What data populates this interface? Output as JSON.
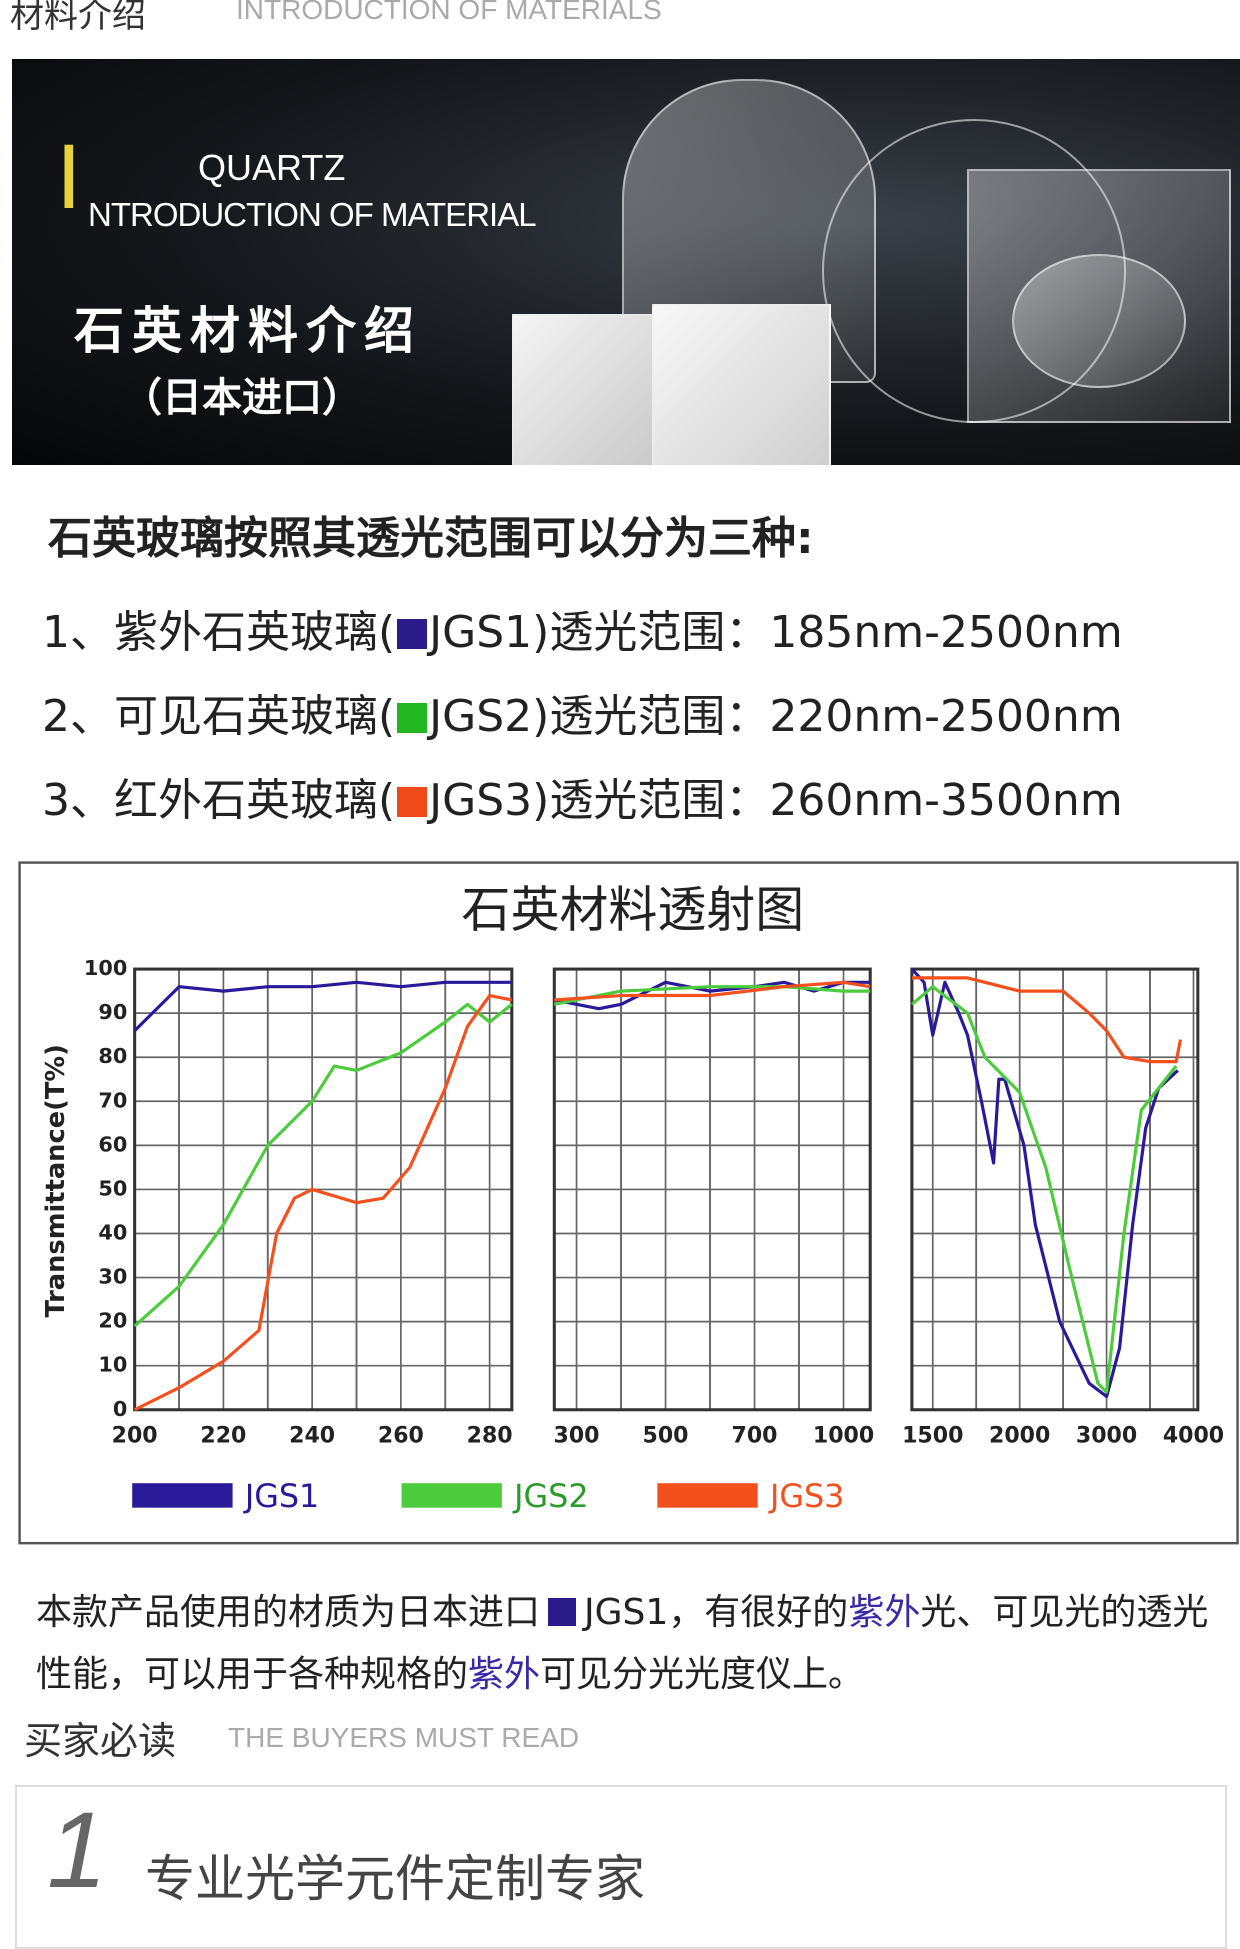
{
  "header": {
    "title": "材料介绍",
    "subtitle": "INTRODUCTION OF MATERIALS"
  },
  "banner": {
    "initial": "I",
    "line1": "QUARTZ",
    "line2": "NTRODUCTION OF MATERIAL",
    "cn_title": "石英材料介绍",
    "cn_sub": "（日本进口）"
  },
  "intro": {
    "heading": "石英玻璃按照其透光范围可以分为三种:",
    "items": [
      {
        "prefix": "1、紫外石英玻璃(",
        "color": "#2a1a8a",
        "name": "JGS1",
        "suffix": ")透光范围：",
        "range": "185nm-2500nm"
      },
      {
        "prefix": "2、可见石英玻璃(",
        "color": "#22b822",
        "name": "JGS2",
        "suffix": ")透光范围：",
        "range": "220nm-2500nm"
      },
      {
        "prefix": "3、红外石英玻璃(",
        "color": "#f04a1a",
        "name": "JGS3",
        "suffix": ")透光范围：",
        "range": "260nm-3500nm"
      }
    ]
  },
  "chart_data": {
    "type": "line",
    "title": "石英材料透射图",
    "y_label": "Transmittance(T%)",
    "ylim": [
      0,
      100
    ],
    "yticks": [
      0,
      10,
      20,
      30,
      40,
      50,
      60,
      70,
      80,
      90,
      100
    ],
    "grid": true,
    "panels": [
      {
        "xlim": [
          200,
          285
        ],
        "xticks": [
          200,
          220,
          240,
          260,
          280
        ]
      },
      {
        "xlim": [
          250,
          1090
        ],
        "xticks": [
          300,
          500,
          700,
          1000
        ]
      },
      {
        "xlim": [
          1380,
          4050
        ],
        "xticks": [
          1500,
          2000,
          3000,
          4000
        ]
      }
    ],
    "series": [
      {
        "name": "JGS1",
        "color": "#2a1a9a",
        "pieces": [
          {
            "x": [
              200,
              205,
              210,
              220,
              230,
              240,
              250,
              260,
              270,
              280,
              285
            ],
            "values": [
              86,
              91,
              96,
              95,
              96,
              96,
              97,
              96,
              97,
              97,
              97
            ]
          },
          {
            "x": [
              250,
              350,
              400,
              500,
              550,
              600,
              700,
              800,
              900,
              1000,
              1090
            ],
            "values": [
              93,
              91,
              92,
              97,
              96,
              95,
              96,
              97,
              95,
              97,
              97
            ]
          },
          {
            "x": [
              1380,
              1450,
              1500,
              1570,
              1650,
              1700,
              1780,
              1850,
              1880,
              1914,
              2050,
              2180,
              2460,
              2800,
              3000,
              3150,
              3300,
              3450,
              3600,
              3820
            ],
            "values": [
              100,
              97,
              85,
              97,
              90,
              85,
              70,
              56,
              75,
              75,
              60,
              42,
              20,
              6,
              3,
              14,
              42,
              64,
              73,
              77
            ]
          }
        ]
      },
      {
        "name": "JGS2",
        "color": "#4ccc3c",
        "pieces": [
          {
            "x": [
              200,
              210,
              220,
              230,
              240,
              245,
              250,
              260,
              270,
              275,
              280,
              285
            ],
            "values": [
              19,
              28,
              42,
              60,
              70,
              78,
              77,
              81,
              88,
              92,
              88,
              92
            ]
          },
          {
            "x": [
              250,
              400,
              600,
              800,
              1000,
              1090
            ],
            "values": [
              92,
              95,
              96,
              96,
              95,
              95
            ]
          },
          {
            "x": [
              1380,
              1500,
              1700,
              1800,
              2000,
              2300,
              2600,
              2900,
              3000,
              3200,
              3400,
              3800
            ],
            "values": [
              92,
              96,
              90,
              80,
              72,
              55,
              30,
              6,
              4,
              40,
              68,
              78
            ]
          }
        ]
      },
      {
        "name": "JGS3",
        "color": "#f4501e",
        "pieces": [
          {
            "x": [
              200,
              210,
              220,
              228,
              232,
              236,
              240,
              250,
              256,
              262,
              270,
              275,
              280,
              285
            ],
            "values": [
              0,
              5,
              11,
              18,
              40,
              48,
              50,
              47,
              48,
              55,
              73,
              87,
              94,
              93
            ]
          },
          {
            "x": [
              250,
              400,
              600,
              800,
              1000,
              1090
            ],
            "values": [
              93,
              94,
              94,
              96,
              97,
              96
            ]
          },
          {
            "x": [
              1380,
              1700,
              2000,
              2500,
              2800,
              3000,
              3200,
              3500,
              3800,
              3850
            ],
            "values": [
              98,
              98,
              95,
              95,
              90,
              86,
              80,
              79,
              79,
              84
            ]
          }
        ]
      }
    ]
  },
  "paragraph": {
    "parts": [
      "本款产品使用的材质为日本进口",
      "JGS1",
      "，有很好的",
      "紫外",
      "光、可见光的透光性能，可以用于各种规格的",
      "紫外",
      "可见分光光度仪上。"
    ]
  },
  "section2": {
    "title": "买家必读",
    "subtitle": "THE BUYERS MUST READ"
  },
  "card": {
    "number": "1",
    "text": "专业光学元件定制专家"
  }
}
